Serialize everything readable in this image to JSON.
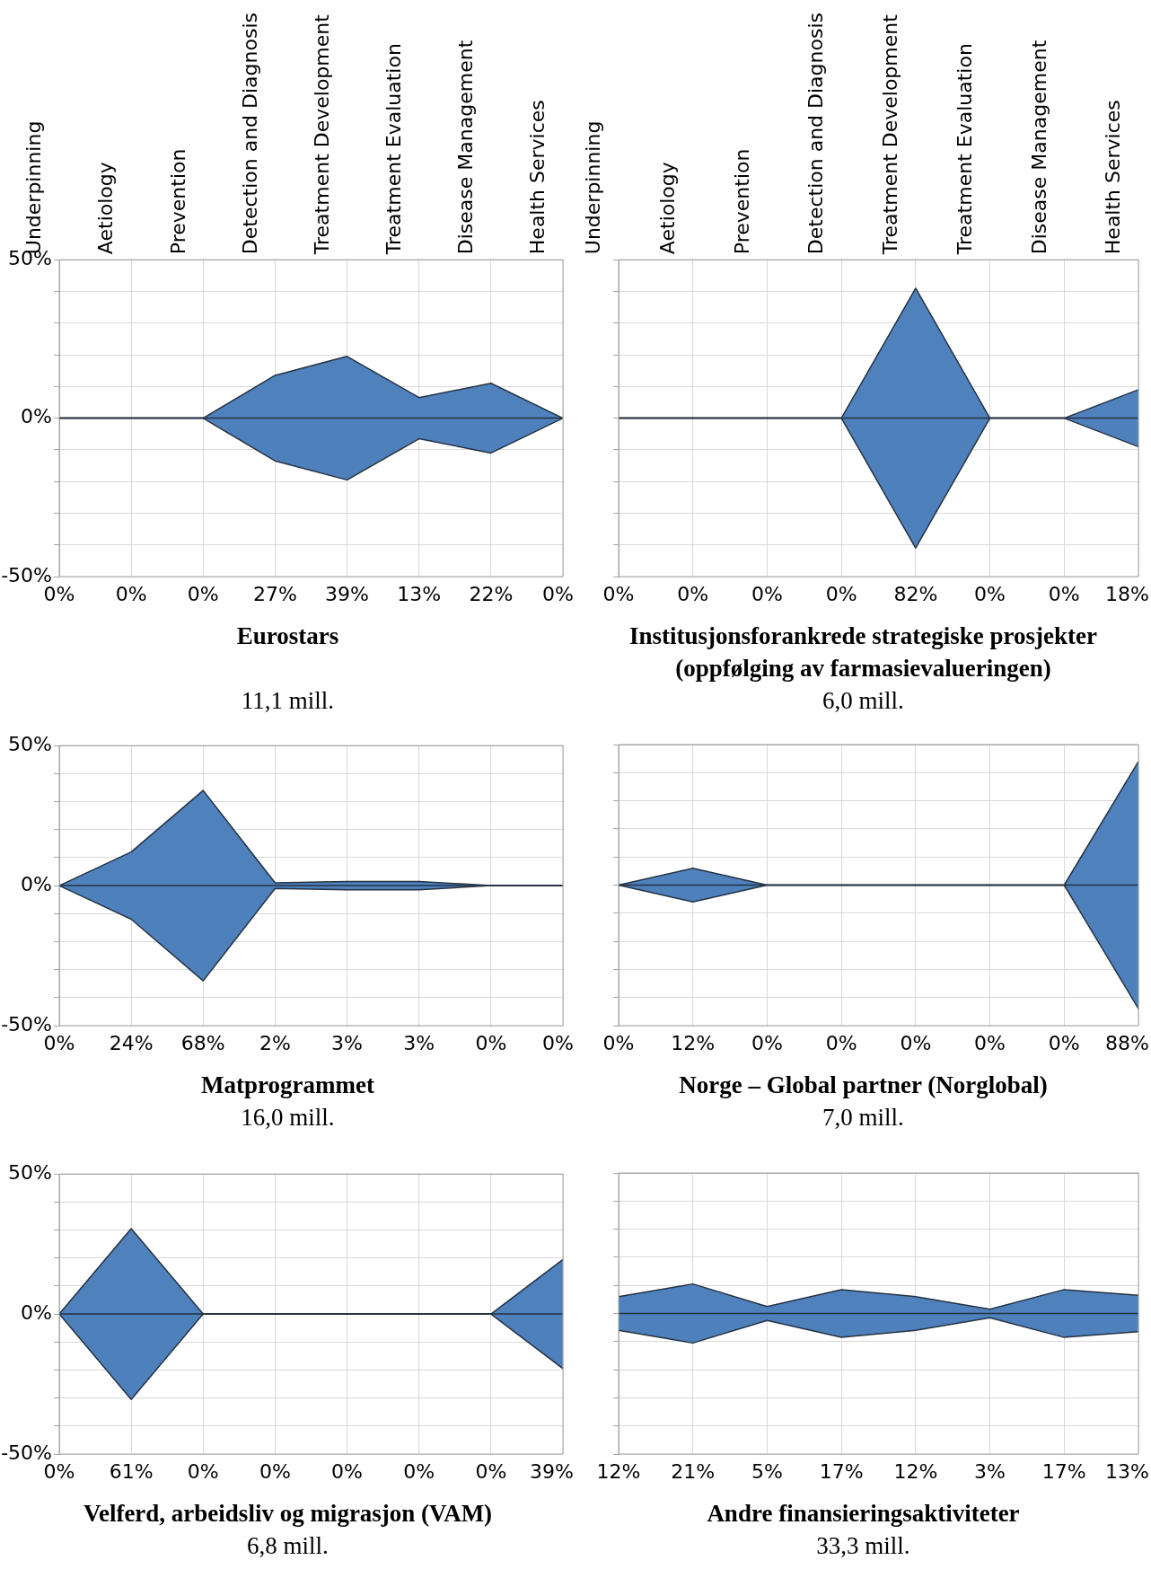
{
  "chart_data": [
    {
      "type": "area",
      "title": "Eurostars",
      "subtitle": "11,1 mill.",
      "categories": [
        "Underpinning",
        "Aetiology",
        "Prevention",
        "Detection and Diagnosis",
        "Treatment Development",
        "Treatment Evaluation",
        "Disease Management",
        "Health Services"
      ],
      "ylim": [
        -50,
        50
      ],
      "yticks": [
        {
          "value": 50,
          "label": "50%"
        },
        {
          "value": 40,
          "label": null
        },
        {
          "value": 30,
          "label": null
        },
        {
          "value": 20,
          "label": null
        },
        {
          "value": 10,
          "label": null
        },
        {
          "value": 0,
          "label": "0%"
        },
        {
          "value": -10,
          "label": null
        },
        {
          "value": -20,
          "label": null
        },
        {
          "value": -30,
          "label": null
        },
        {
          "value": -40,
          "label": null
        },
        {
          "value": -50,
          "label": "-50%"
        }
      ],
      "grid": true,
      "series": [
        {
          "color": "#4f81bd",
          "values": [
            0,
            0,
            0,
            13.5,
            19.5,
            6.5,
            11,
            0
          ]
        },
        {
          "color": "#4e80bc",
          "values": [
            0,
            0,
            0,
            -13.5,
            -19.5,
            -6.5,
            -11,
            0
          ]
        }
      ],
      "annotations": [
        "0%",
        "0%",
        "0%",
        "27%",
        "39%",
        "13%",
        "22%",
        "0%"
      ]
    },
    {
      "type": "area",
      "title": "Institusjonsforankrede strategiske prosjekter (oppfølging av farmasievalueringen)",
      "subtitle": "6,0 mill.",
      "categories": [
        "Underpinning",
        "Aetiology",
        "Prevention",
        "Detection and Diagnosis",
        "Treatment Development",
        "Treatment Evaluation",
        "Disease Management",
        "Health Services"
      ],
      "ylim": [
        -50,
        50
      ],
      "yticks": [
        {
          "value": 50,
          "label": null
        },
        {
          "value": 40,
          "label": null
        },
        {
          "value": 30,
          "label": null
        },
        {
          "value": 20,
          "label": null
        },
        {
          "value": 10,
          "label": null
        },
        {
          "value": 0,
          "label": null
        },
        {
          "value": -10,
          "label": null
        },
        {
          "value": -20,
          "label": null
        },
        {
          "value": -30,
          "label": null
        },
        {
          "value": -40,
          "label": null
        },
        {
          "value": -50,
          "label": null
        }
      ],
      "grid": true,
      "tick_labels": "x",
      "series": [
        {
          "color": "#4f81bd",
          "values": [
            0,
            0,
            0,
            0,
            41,
            0,
            0,
            9
          ]
        },
        {
          "color": "#4e80bc",
          "values": [
            0,
            0,
            0,
            0,
            -41,
            0,
            0,
            -9
          ]
        }
      ],
      "annotations": [
        "0%",
        "0%",
        "0%",
        "0%",
        "82%",
        "0%",
        "0%",
        "18%"
      ]
    },
    {
      "type": "area",
      "title": "Matprogrammet",
      "subtitle": "16,0 mill.",
      "categories": [
        null,
        null,
        null,
        null,
        null,
        null,
        null,
        null
      ],
      "ylim": [
        -50,
        50
      ],
      "yticks": [
        {
          "value": 50,
          "label": "50%"
        },
        {
          "value": 40,
          "label": null
        },
        {
          "value": 30,
          "label": null
        },
        {
          "value": 20,
          "label": null
        },
        {
          "value": 10,
          "label": null
        },
        {
          "value": 0,
          "label": "0%"
        },
        {
          "value": -10,
          "label": null
        },
        {
          "value": -20,
          "label": null
        },
        {
          "value": -30,
          "label": null
        },
        {
          "value": -40,
          "label": null
        },
        {
          "value": -50,
          "label": "-50%"
        }
      ],
      "grid": true,
      "tick_labels": "y",
      "series": [
        {
          "color": "#4f81bd",
          "values": [
            0,
            12,
            34,
            1,
            1.5,
            1.5,
            0,
            0
          ]
        },
        {
          "color": "#4e80bc",
          "values": [
            0,
            -12,
            -34,
            -1,
            -1.5,
            -1.5,
            0,
            0
          ]
        }
      ],
      "annotations": [
        "0%",
        "24%",
        "68%",
        "2%",
        "3%",
        "3%",
        "0%",
        "0%"
      ]
    },
    {
      "type": "area",
      "title": "Norge – Global partner (Norglobal)",
      "subtitle": "7,0 mill.",
      "categories": [
        null,
        null,
        null,
        null,
        null,
        null,
        null,
        null
      ],
      "ylim": [
        -50,
        50
      ],
      "yticks": [
        {
          "value": 50,
          "label": null
        },
        {
          "value": 40,
          "label": null
        },
        {
          "value": 30,
          "label": null
        },
        {
          "value": 20,
          "label": null
        },
        {
          "value": 10,
          "label": null
        },
        {
          "value": 0,
          "label": null
        },
        {
          "value": -10,
          "label": null
        },
        {
          "value": -20,
          "label": null
        },
        {
          "value": -30,
          "label": null
        },
        {
          "value": -40,
          "label": null
        },
        {
          "value": -50,
          "label": null
        }
      ],
      "grid": true,
      "tick_labels": false,
      "series": [
        {
          "color": "#4f81bd",
          "values": [
            0,
            6,
            0,
            0,
            0,
            0,
            0,
            44
          ]
        },
        {
          "color": "#4e80bc",
          "values": [
            0,
            -6,
            0,
            0,
            0,
            0,
            0,
            -44
          ]
        }
      ],
      "annotations": [
        "0%",
        "12%",
        "0%",
        "0%",
        "0%",
        "0%",
        "0%",
        "88%"
      ]
    },
    {
      "type": "area",
      "title": "Velferd, arbeidsliv og migrasjon (VAM)",
      "subtitle": "6,8 mill.",
      "categories": [
        null,
        null,
        null,
        null,
        null,
        null,
        null,
        null
      ],
      "ylim": [
        -50,
        50
      ],
      "yticks": [
        {
          "value": 50,
          "label": "50%"
        },
        {
          "value": 40,
          "label": null
        },
        {
          "value": 30,
          "label": null
        },
        {
          "value": 20,
          "label": null
        },
        {
          "value": 10,
          "label": null
        },
        {
          "value": 0,
          "label": "0%"
        },
        {
          "value": -10,
          "label": null
        },
        {
          "value": -20,
          "label": null
        },
        {
          "value": -30,
          "label": null
        },
        {
          "value": -40,
          "label": null
        },
        {
          "value": -50,
          "label": "-50%"
        }
      ],
      "grid": true,
      "tick_labels": "y",
      "series": [
        {
          "color": "#4f81bd",
          "values": [
            0,
            30.5,
            0,
            0,
            0,
            0,
            0,
            19.5
          ]
        },
        {
          "color": "#4e80bc",
          "values": [
            0,
            -30.5,
            0,
            0,
            0,
            0,
            0,
            -19.5
          ]
        }
      ],
      "annotations": [
        "0%",
        "61%",
        "0%",
        "0%",
        "0%",
        "0%",
        "0%",
        "39%"
      ]
    },
    {
      "type": "area",
      "title": "Andre finansieringsaktiviteter",
      "subtitle": "33,3 mill.",
      "categories": [
        null,
        null,
        null,
        null,
        null,
        null,
        null,
        null
      ],
      "ylim": [
        -50,
        50
      ],
      "yticks": [
        {
          "value": 50,
          "label": null
        },
        {
          "value": 40,
          "label": null
        },
        {
          "value": 30,
          "label": null
        },
        {
          "value": 20,
          "label": null
        },
        {
          "value": 10,
          "label": null
        },
        {
          "value": 0,
          "label": null
        },
        {
          "value": -10,
          "label": null
        },
        {
          "value": -20,
          "label": null
        },
        {
          "value": -30,
          "label": null
        },
        {
          "value": -40,
          "label": null
        },
        {
          "value": -50,
          "label": null
        }
      ],
      "grid": true,
      "tick_labels": false,
      "series": [
        {
          "color": "#4f81bd",
          "values": [
            6,
            10.5,
            2.5,
            8.5,
            6,
            1.5,
            8.5,
            6.5
          ]
        },
        {
          "color": "#4e80bc",
          "values": [
            -6,
            -10.5,
            -2.5,
            -8.5,
            -6,
            -1.5,
            -8.5,
            -6.5
          ]
        }
      ],
      "annotations": [
        "12%",
        "21%",
        "5%",
        "17%",
        "12%",
        "3%",
        "17%",
        "13%"
      ]
    }
  ]
}
